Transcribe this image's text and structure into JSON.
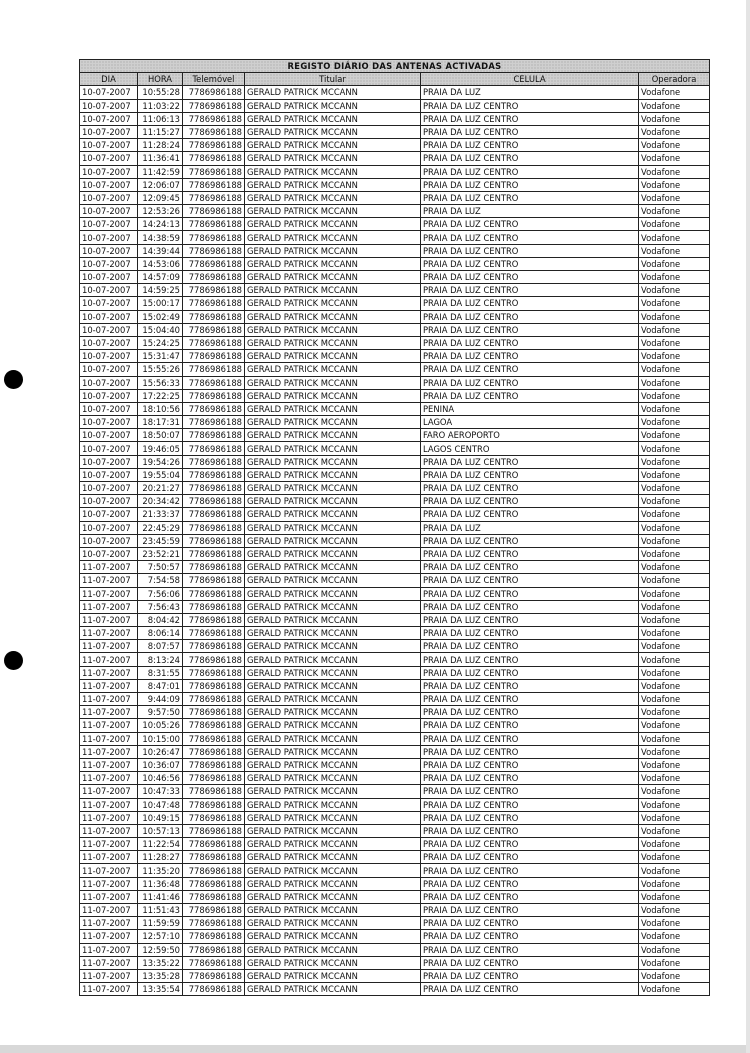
{
  "title": "REGISTO DIÁRIO DAS ANTENAS ACTIVADAS",
  "columns": [
    "DIA",
    "HORA",
    "Telemóvel",
    "Titular",
    "CELULA",
    "Operadora"
  ],
  "rows": [
    [
      "10-07-2007",
      "10:55:28",
      "7786986188",
      "GERALD PATRICK MCCANN",
      "PRAIA DA LUZ",
      "Vodafone"
    ],
    [
      "10-07-2007",
      "11:03:22",
      "7786986188",
      "GERALD PATRICK MCCANN",
      "PRAIA DA LUZ CENTRO",
      "Vodafone"
    ],
    [
      "10-07-2007",
      "11:06:13",
      "7786986188",
      "GERALD PATRICK MCCANN",
      "PRAIA DA LUZ CENTRO",
      "Vodafone"
    ],
    [
      "10-07-2007",
      "11:15:27",
      "7786986188",
      "GERALD PATRICK MCCANN",
      "PRAIA DA LUZ CENTRO",
      "Vodafone"
    ],
    [
      "10-07-2007",
      "11:28:24",
      "7786986188",
      "GERALD PATRICK MCCANN",
      "PRAIA DA LUZ CENTRO",
      "Vodafone"
    ],
    [
      "10-07-2007",
      "11:36:41",
      "7786986188",
      "GERALD PATRICK MCCANN",
      "PRAIA DA LUZ CENTRO",
      "Vodafone"
    ],
    [
      "10-07-2007",
      "11:42:59",
      "7786986188",
      "GERALD PATRICK MCCANN",
      "PRAIA DA LUZ CENTRO",
      "Vodafone"
    ],
    [
      "10-07-2007",
      "12:06:07",
      "7786986188",
      "GERALD PATRICK MCCANN",
      "PRAIA DA LUZ CENTRO",
      "Vodafone"
    ],
    [
      "10-07-2007",
      "12:09:45",
      "7786986188",
      "GERALD PATRICK MCCANN",
      "PRAIA DA LUZ CENTRO",
      "Vodafone"
    ],
    [
      "10-07-2007",
      "12:53:26",
      "7786986188",
      "GERALD PATRICK MCCANN",
      "PRAIA DA LUZ",
      "Vodafone"
    ],
    [
      "10-07-2007",
      "14:24:13",
      "7786986188",
      "GERALD PATRICK MCCANN",
      "PRAIA DA LUZ CENTRO",
      "Vodafone"
    ],
    [
      "10-07-2007",
      "14:38:59",
      "7786986188",
      "GERALD PATRICK MCCANN",
      "PRAIA DA LUZ CENTRO",
      "Vodafone"
    ],
    [
      "10-07-2007",
      "14:39:44",
      "7786986188",
      "GERALD PATRICK MCCANN",
      "PRAIA DA LUZ CENTRO",
      "Vodafone"
    ],
    [
      "10-07-2007",
      "14:53:06",
      "7786986188",
      "GERALD PATRICK MCCANN",
      "PRAIA DA LUZ CENTRO",
      "Vodafone"
    ],
    [
      "10-07-2007",
      "14:57:09",
      "7786986188",
      "GERALD PATRICK MCCANN",
      "PRAIA DA LUZ CENTRO",
      "Vodafone"
    ],
    [
      "10-07-2007",
      "14:59:25",
      "7786986188",
      "GERALD PATRICK MCCANN",
      "PRAIA DA LUZ CENTRO",
      "Vodafone"
    ],
    [
      "10-07-2007",
      "15:00:17",
      "7786986188",
      "GERALD PATRICK MCCANN",
      "PRAIA DA LUZ CENTRO",
      "Vodafone"
    ],
    [
      "10-07-2007",
      "15:02:49",
      "7786986188",
      "GERALD PATRICK MCCANN",
      "PRAIA DA LUZ CENTRO",
      "Vodafone"
    ],
    [
      "10-07-2007",
      "15:04:40",
      "7786986188",
      "GERALD PATRICK MCCANN",
      "PRAIA DA LUZ CENTRO",
      "Vodafone"
    ],
    [
      "10-07-2007",
      "15:24:25",
      "7786986188",
      "GERALD PATRICK MCCANN",
      "PRAIA DA LUZ CENTRO",
      "Vodafone"
    ],
    [
      "10-07-2007",
      "15:31:47",
      "7786986188",
      "GERALD PATRICK MCCANN",
      "PRAIA DA LUZ CENTRO",
      "Vodafone"
    ],
    [
      "10-07-2007",
      "15:55:26",
      "7786986188",
      "GERALD PATRICK MCCANN",
      "PRAIA DA LUZ CENTRO",
      "Vodafone"
    ],
    [
      "10-07-2007",
      "15:56:33",
      "7786986188",
      "GERALD PATRICK MCCANN",
      "PRAIA DA LUZ CENTRO",
      "Vodafone"
    ],
    [
      "10-07-2007",
      "17:22:25",
      "7786986188",
      "GERALD PATRICK MCCANN",
      "PRAIA DA LUZ CENTRO",
      "Vodafone"
    ],
    [
      "10-07-2007",
      "18:10:56",
      "7786986188",
      "GERALD PATRICK MCCANN",
      "PENINA",
      "Vodafone"
    ],
    [
      "10-07-2007",
      "18:17:31",
      "7786986188",
      "GERALD PATRICK MCCANN",
      "LAGOA",
      "Vodafone"
    ],
    [
      "10-07-2007",
      "18:50:07",
      "7786986188",
      "GERALD PATRICK MCCANN",
      "FARO AEROPORTO",
      "Vodafone"
    ],
    [
      "10-07-2007",
      "19:46:05",
      "7786986188",
      "GERALD PATRICK MCCANN",
      "LAGOS CENTRO",
      "Vodafone"
    ],
    [
      "10-07-2007",
      "19:54:26",
      "7786986188",
      "GERALD PATRICK MCCANN",
      "PRAIA DA LUZ CENTRO",
      "Vodafone"
    ],
    [
      "10-07-2007",
      "19:55:04",
      "7786986188",
      "GERALD PATRICK MCCANN",
      "PRAIA DA LUZ CENTRO",
      "Vodafone"
    ],
    [
      "10-07-2007",
      "20:21:27",
      "7786986188",
      "GERALD PATRICK MCCANN",
      "PRAIA DA LUZ CENTRO",
      "Vodafone"
    ],
    [
      "10-07-2007",
      "20:34:42",
      "7786986188",
      "GERALD PATRICK MCCANN",
      "PRAIA DA LUZ CENTRO",
      "Vodafone"
    ],
    [
      "10-07-2007",
      "21:33:37",
      "7786986188",
      "GERALD PATRICK MCCANN",
      "PRAIA DA LUZ CENTRO",
      "Vodafone"
    ],
    [
      "10-07-2007",
      "22:45:29",
      "7786986188",
      "GERALD PATRICK MCCANN",
      "PRAIA DA LUZ",
      "Vodafone"
    ],
    [
      "10-07-2007",
      "23:45:59",
      "7786986188",
      "GERALD PATRICK MCCANN",
      "PRAIA DA LUZ CENTRO",
      "Vodafone"
    ],
    [
      "10-07-2007",
      "23:52:21",
      "7786986188",
      "GERALD PATRICK MCCANN",
      "PRAIA DA LUZ CENTRO",
      "Vodafone"
    ],
    [
      "11-07-2007",
      "7:50:57",
      "7786986188",
      "GERALD PATRICK MCCANN",
      "PRAIA DA LUZ CENTRO",
      "Vodafone"
    ],
    [
      "11-07-2007",
      "7:54:58",
      "7786986188",
      "GERALD PATRICK MCCANN",
      "PRAIA DA LUZ CENTRO",
      "Vodafone"
    ],
    [
      "11-07-2007",
      "7:56:06",
      "7786986188",
      "GERALD PATRICK MCCANN",
      "PRAIA DA LUZ CENTRO",
      "Vodafone"
    ],
    [
      "11-07-2007",
      "7:56:43",
      "7786986188",
      "GERALD PATRICK MCCANN",
      "PRAIA DA LUZ CENTRO",
      "Vodafone"
    ],
    [
      "11-07-2007",
      "8:04:42",
      "7786986188",
      "GERALD PATRICK MCCANN",
      "PRAIA DA LUZ CENTRO",
      "Vodafone"
    ],
    [
      "11-07-2007",
      "8:06:14",
      "7786986188",
      "GERALD PATRICK MCCANN",
      "PRAIA DA LUZ CENTRO",
      "Vodafone"
    ],
    [
      "11-07-2007",
      "8:07:57",
      "7786986188",
      "GERALD PATRICK MCCANN",
      "PRAIA DA LUZ CENTRO",
      "Vodafone"
    ],
    [
      "11-07-2007",
      "8:13:24",
      "7786986188",
      "GERALD PATRICK MCCANN",
      "PRAIA DA LUZ CENTRO",
      "Vodafone"
    ],
    [
      "11-07-2007",
      "8:31:55",
      "7786986188",
      "GERALD PATRICK MCCANN",
      "PRAIA DA LUZ CENTRO",
      "Vodafone"
    ],
    [
      "11-07-2007",
      "8:47:01",
      "7786986188",
      "GERALD PATRICK MCCANN",
      "PRAIA DA LUZ CENTRO",
      "Vodafone"
    ],
    [
      "11-07-2007",
      "9:44:09",
      "7786986188",
      "GERALD PATRICK MCCANN",
      "PRAIA DA LUZ CENTRO",
      "Vodafone"
    ],
    [
      "11-07-2007",
      "9:57:50",
      "7786986188",
      "GERALD PATRICK MCCANN",
      "PRAIA DA LUZ CENTRO",
      "Vodafone"
    ],
    [
      "11-07-2007",
      "10:05:26",
      "7786986188",
      "GERALD PATRICK MCCANN",
      "PRAIA DA LUZ CENTRO",
      "Vodafone"
    ],
    [
      "11-07-2007",
      "10:15:00",
      "7786986188",
      "GERALD PATRICK MCCANN",
      "PRAIA DA LUZ CENTRO",
      "Vodafone"
    ],
    [
      "11-07-2007",
      "10:26:47",
      "7786986188",
      "GERALD PATRICK MCCANN",
      "PRAIA DA LUZ CENTRO",
      "Vodafone"
    ],
    [
      "11-07-2007",
      "10:36:07",
      "7786986188",
      "GERALD PATRICK MCCANN",
      "PRAIA DA LUZ CENTRO",
      "Vodafone"
    ],
    [
      "11-07-2007",
      "10:46:56",
      "7786986188",
      "GERALD PATRICK MCCANN",
      "PRAIA DA LUZ CENTRO",
      "Vodafone"
    ],
    [
      "11-07-2007",
      "10:47:33",
      "7786986188",
      "GERALD PATRICK MCCANN",
      "PRAIA DA LUZ CENTRO",
      "Vodafone"
    ],
    [
      "11-07-2007",
      "10:47:48",
      "7786986188",
      "GERALD PATRICK MCCANN",
      "PRAIA DA LUZ CENTRO",
      "Vodafone"
    ],
    [
      "11-07-2007",
      "10:49:15",
      "7786986188",
      "GERALD PATRICK MCCANN",
      "PRAIA DA LUZ CENTRO",
      "Vodafone"
    ],
    [
      "11-07-2007",
      "10:57:13",
      "7786986188",
      "GERALD PATRICK MCCANN",
      "PRAIA DA LUZ CENTRO",
      "Vodafone"
    ],
    [
      "11-07-2007",
      "11:22:54",
      "7786986188",
      "GERALD PATRICK MCCANN",
      "PRAIA DA LUZ CENTRO",
      "Vodafone"
    ],
    [
      "11-07-2007",
      "11:28:27",
      "7786986188",
      "GERALD PATRICK MCCANN",
      "PRAIA DA LUZ CENTRO",
      "Vodafone"
    ],
    [
      "11-07-2007",
      "11:35:20",
      "7786986188",
      "GERALD PATRICK MCCANN",
      "PRAIA DA LUZ CENTRO",
      "Vodafone"
    ],
    [
      "11-07-2007",
      "11:36:48",
      "7786986188",
      "GERALD PATRICK MCCANN",
      "PRAIA DA LUZ CENTRO",
      "Vodafone"
    ],
    [
      "11-07-2007",
      "11:41:46",
      "7786986188",
      "GERALD PATRICK MCCANN",
      "PRAIA DA LUZ CENTRO",
      "Vodafone"
    ],
    [
      "11-07-2007",
      "11:51:43",
      "7786986188",
      "GERALD PATRICK MCCANN",
      "PRAIA DA LUZ CENTRO",
      "Vodafone"
    ],
    [
      "11-07-2007",
      "11:59:59",
      "7786986188",
      "GERALD PATRICK MCCANN",
      "PRAIA DA LUZ CENTRO",
      "Vodafone"
    ],
    [
      "11-07-2007",
      "12:57:10",
      "7786986188",
      "GERALD PATRICK MCCANN",
      "PRAIA DA LUZ CENTRO",
      "Vodafone"
    ],
    [
      "11-07-2007",
      "12:59:50",
      "7786986188",
      "GERALD PATRICK MCCANN",
      "PRAIA DA LUZ CENTRO",
      "Vodafone"
    ],
    [
      "11-07-2007",
      "13:35:22",
      "7786986188",
      "GERALD PATRICK MCCANN",
      "PRAIA DA LUZ CENTRO",
      "Vodafone"
    ],
    [
      "11-07-2007",
      "13:35:28",
      "7786986188",
      "GERALD PATRICK MCCANN",
      "PRAIA DA LUZ CENTRO",
      "Vodafone"
    ],
    [
      "11-07-2007",
      "13:35:54",
      "7786986188",
      "GERALD PATRICK MCCANN",
      "PRAIA DA LUZ CENTRO",
      "Vodafone"
    ]
  ]
}
